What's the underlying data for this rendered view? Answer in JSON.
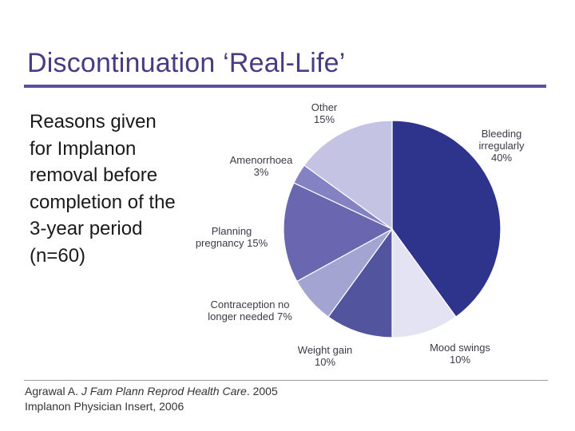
{
  "slide": {
    "title": "Discontinuation ‘Real-Life’",
    "description": "Reasons given for Implanon removal before completion of the 3-year period (n=60)",
    "reference_line1_part1": "Agrawal A. ",
    "reference_line1_journal": "J Fam Plann Reprod Health Care",
    "reference_line1_part2": ".  2005",
    "reference_line2": "Implanon Physician Insert, 2006"
  },
  "colors": {
    "title": "#4a3a82",
    "rule": "#5a52a0"
  },
  "chart_data": {
    "type": "pie",
    "title": "",
    "unit": "%",
    "slices": [
      {
        "label": "Bleeding irregularly",
        "value": 40,
        "label_text": "Bleeding|irregularly|40%",
        "color": "#2e338c",
        "align": "middle"
      },
      {
        "label": "Mood swings",
        "value": 10,
        "label_text": "Mood swings|10%",
        "color": "#e3e3f3",
        "align": "middle"
      },
      {
        "label": "Weight gain",
        "value": 10,
        "label_text": "Weight gain|10%",
        "color": "#52559e",
        "align": "middle"
      },
      {
        "label": "Contraception no longer needed",
        "value": 7,
        "label_text": "Contraception no|longer needed 7%",
        "color": "#a4a4d2",
        "align": "middle"
      },
      {
        "label": "Planning pregnancy",
        "value": 15,
        "label_text": "Planning|pregnancy 15%",
        "color": "#6a67b0",
        "align": "middle"
      },
      {
        "label": "Amenorrhoea",
        "value": 3,
        "label_text": "Amenorrhoea|3%",
        "color": "#8582c4",
        "align": "middle"
      },
      {
        "label": "Other",
        "value": 15,
        "label_text": "Other|15%",
        "color": "#c4c3e4",
        "align": "middle"
      }
    ]
  }
}
